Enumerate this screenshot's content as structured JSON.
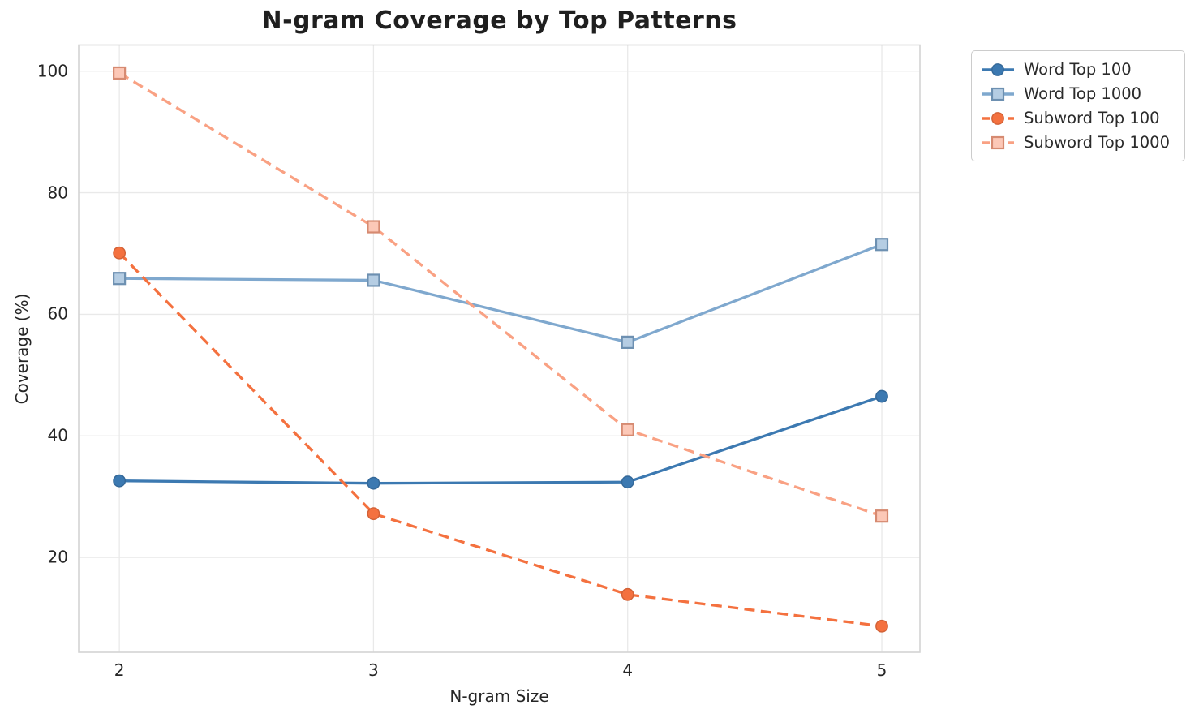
{
  "chart_data": {
    "type": "line",
    "title": "N-gram Coverage by Top Patterns",
    "xlabel": "N-gram Size",
    "ylabel": "Coverage (%)",
    "x": [
      2,
      3,
      4,
      5
    ],
    "x_tick_labels": [
      "2",
      "3",
      "4",
      "5"
    ],
    "y_ticks": [
      20,
      40,
      60,
      80,
      100
    ],
    "xlim": [
      1.84,
      5.15
    ],
    "ylim": [
      4.4,
      104.3
    ],
    "grid": true,
    "legend_position": "outside-upper-right",
    "series": [
      {
        "name": "Word Top 100",
        "values": [
          32.6,
          32.2,
          32.4,
          46.5
        ],
        "color": "#3c79b1",
        "line_style": "solid",
        "marker": "circle"
      },
      {
        "name": "Word Top 1000",
        "values": [
          65.9,
          65.6,
          55.4,
          71.5
        ],
        "color": "#7fa8ce",
        "line_style": "solid",
        "marker": "square"
      },
      {
        "name": "Subword Top 100",
        "values": [
          70.1,
          27.2,
          13.9,
          8.7
        ],
        "color": "#f4713f",
        "line_style": "dashed",
        "marker": "circle"
      },
      {
        "name": "Subword Top 1000",
        "values": [
          99.7,
          74.4,
          41.0,
          26.8
        ],
        "color": "#f9a183",
        "line_style": "dashed",
        "marker": "square"
      }
    ],
    "grid_color": "#e9e9e9",
    "spine_color": "#d4d4d4",
    "text_color": "#262626"
  }
}
